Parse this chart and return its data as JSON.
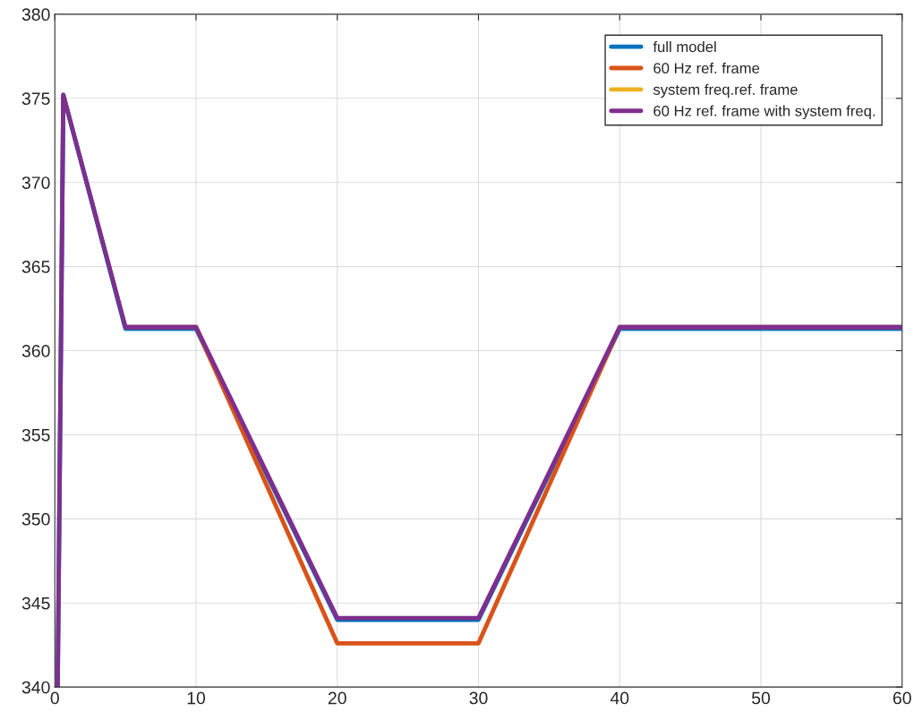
{
  "chart_data": {
    "type": "line",
    "xlim": [
      0,
      60
    ],
    "ylim": [
      340,
      380
    ],
    "xticks": [
      0,
      10,
      20,
      30,
      40,
      50,
      60
    ],
    "yticks": [
      340,
      345,
      350,
      355,
      360,
      365,
      370,
      375,
      380
    ],
    "grid": true,
    "legend": "top right",
    "line_style": "solid",
    "series": [
      {
        "name": "full model",
        "color": "#0072bd",
        "x": [
          0.2,
          0.6,
          5,
          10,
          20,
          30,
          40,
          60
        ],
        "values": [
          340,
          375.2,
          361.3,
          361.3,
          344.0,
          344.0,
          361.3,
          361.3
        ]
      },
      {
        "name": "60 Hz ref. frame",
        "color": "#d95319",
        "x": [
          5,
          10,
          20,
          30,
          40,
          60
        ],
        "values": [
          361.4,
          361.4,
          342.6,
          342.6,
          361.4,
          361.4
        ]
      },
      {
        "name": "system freq.ref. frame",
        "color": "#edb120",
        "values": [
          null,
          null,
          null,
          null,
          null,
          null,
          null,
          null
        ]
      },
      {
        "name": "60 Hz ref. frame with system freq.",
        "color": "#7e2f8e",
        "x": [
          0.2,
          0.6,
          5,
          10,
          20,
          30,
          40,
          60
        ],
        "values": [
          340,
          375.2,
          361.4,
          361.4,
          344.1,
          344.1,
          361.4,
          361.4
        ]
      }
    ]
  }
}
